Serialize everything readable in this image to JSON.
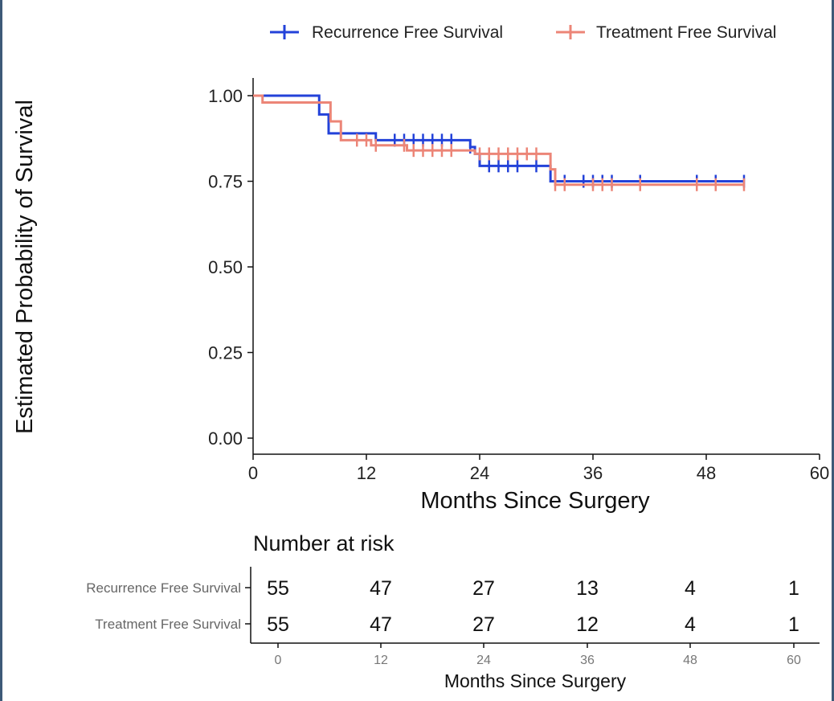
{
  "chart_data": {
    "type": "line",
    "subtype": "kaplan-meier",
    "legend_position": "top-right",
    "xlabel": "Months Since Surgery",
    "ylabel": "Estimated Probability of Survival",
    "xlim": [
      0,
      60
    ],
    "ylim": [
      0,
      1
    ],
    "x_ticks": [
      "0",
      "12",
      "24",
      "36",
      "48",
      "60"
    ],
    "y_ticks": [
      "0.00",
      "0.25",
      "0.50",
      "0.75",
      "1.00"
    ],
    "x_tick_values": [
      0,
      12,
      24,
      36,
      48,
      60
    ],
    "y_tick_values": [
      0,
      0.25,
      0.5,
      0.75,
      1
    ],
    "series": [
      {
        "name": "Recurrence Free Survival",
        "color": "#2342d9",
        "steps": [
          [
            0,
            1.0
          ],
          [
            7,
            0.945
          ],
          [
            8,
            0.89
          ],
          [
            10,
            0.89
          ],
          [
            13,
            0.87
          ],
          [
            16,
            0.87
          ],
          [
            23,
            0.85
          ],
          [
            23.5,
            0.83
          ],
          [
            24,
            0.795
          ],
          [
            31,
            0.795
          ],
          [
            31.5,
            0.75
          ],
          [
            52,
            0.75
          ]
        ],
        "censor_times": [
          15,
          16,
          17,
          18,
          19,
          20,
          21,
          23,
          25,
          26,
          27,
          28,
          30,
          33,
          35,
          36,
          37,
          38,
          41,
          47,
          49,
          52
        ]
      },
      {
        "name": "Treatment Free Survival",
        "color": "#ec8577",
        "steps": [
          [
            0,
            1.0
          ],
          [
            1,
            0.98
          ],
          [
            8,
            0.98
          ],
          [
            8.2,
            0.925
          ],
          [
            9,
            0.925
          ],
          [
            9.3,
            0.87
          ],
          [
            12,
            0.87
          ],
          [
            12.5,
            0.855
          ],
          [
            16,
            0.855
          ],
          [
            16.3,
            0.84
          ],
          [
            23,
            0.84
          ],
          [
            23.5,
            0.83
          ],
          [
            31,
            0.83
          ],
          [
            31.5,
            0.785
          ],
          [
            32,
            0.74
          ],
          [
            52,
            0.74
          ]
        ],
        "censor_times": [
          11,
          12,
          13,
          16,
          17,
          18,
          19,
          20,
          21,
          24,
          25,
          26,
          27,
          28,
          29,
          30,
          32,
          33,
          36,
          37,
          38,
          41,
          47,
          49,
          52
        ]
      }
    ]
  },
  "risk_table": {
    "title": "Number at risk",
    "xlabel": "Months Since Surgery",
    "x_ticks": [
      "0",
      "12",
      "24",
      "36",
      "48",
      "60"
    ],
    "rows": [
      {
        "label": "Recurrence Free Survival",
        "values": [
          "55",
          "47",
          "27",
          "13",
          "4",
          "1"
        ]
      },
      {
        "label": "Treatment Free Survival",
        "values": [
          "55",
          "47",
          "27",
          "12",
          "4",
          "1"
        ]
      }
    ]
  }
}
